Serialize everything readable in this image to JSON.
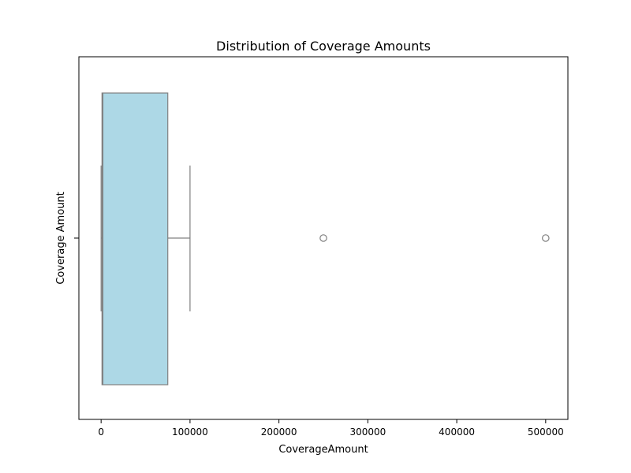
{
  "chart_data": {
    "type": "boxplot",
    "orientation": "horizontal",
    "title": "Distribution of Coverage Amounts",
    "xlabel": "CoverageAmount",
    "ylabel": "Coverage Amount",
    "xlim": [
      -25000,
      525000
    ],
    "x_ticks": [
      0,
      100000,
      200000,
      300000,
      400000,
      500000
    ],
    "x_tick_labels": [
      "0",
      "100000",
      "200000",
      "300000",
      "400000",
      "500000"
    ],
    "grid": false,
    "legend": "none",
    "box_color": "#add8e6",
    "line_color": "#808080",
    "series": [
      {
        "whisker_low": 0,
        "q1": 1000,
        "median": 2000,
        "q3": 75000,
        "whisker_high": 100000,
        "outliers": [
          250000,
          500000
        ]
      }
    ]
  }
}
